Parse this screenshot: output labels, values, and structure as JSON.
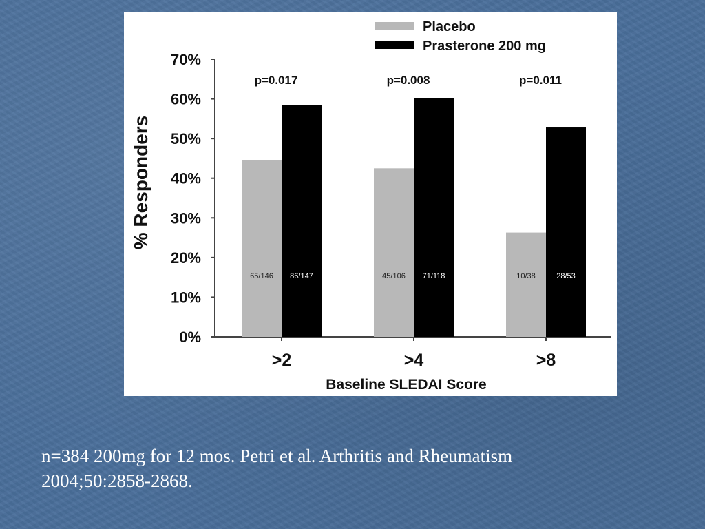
{
  "slide": {
    "background_color": "#4a6f9b",
    "caption_lines": [
      "n=384 200mg for 12 mos. Petri et al. Arthritis and Rheumatism",
      "2004;50:2858-2868."
    ]
  },
  "chart_data": {
    "type": "bar",
    "title": "",
    "xlabel": "Baseline SLEDAI Score",
    "ylabel": "% Responders",
    "categories": [
      ">2",
      ">4",
      ">8"
    ],
    "ylim": [
      0,
      70
    ],
    "yticks": [
      0,
      10,
      20,
      30,
      40,
      50,
      60,
      70
    ],
    "ytick_labels": [
      "0%",
      "10%",
      "20%",
      "30%",
      "40%",
      "50%",
      "60%",
      "70%"
    ],
    "grid": false,
    "legend_position": "top-right",
    "series": [
      {
        "name": "Placebo",
        "color": "#b8b8b8",
        "values": [
          44.5,
          42.5,
          26.3
        ],
        "bar_labels": [
          "65/146",
          "45/106",
          "10/38"
        ]
      },
      {
        "name": "Prasterone  200 mg",
        "color": "#000000",
        "values": [
          58.5,
          60.2,
          52.8
        ],
        "bar_labels": [
          "86/147",
          "71/118",
          "28/53"
        ]
      }
    ],
    "annotations": [
      "p=0.017",
      "p=0.008",
      "p=0.011"
    ]
  }
}
